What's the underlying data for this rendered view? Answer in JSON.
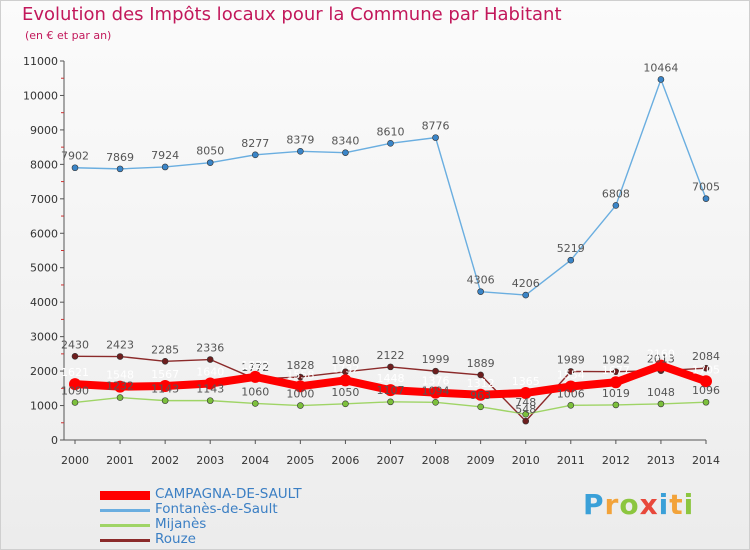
{
  "title": "Evolution des Impôts locaux pour la Commune par Habitant",
  "subtitle": "(en € et par an)",
  "logo": {
    "text": "Proxiti",
    "letters": [
      {
        "ch": "P",
        "color": "#3aa0d8"
      },
      {
        "ch": "r",
        "color": "#f2a33a"
      },
      {
        "ch": "o",
        "color": "#8cc63f"
      },
      {
        "ch": "x",
        "color": "#e8483b"
      },
      {
        "ch": "i",
        "color": "#3aa0d8"
      },
      {
        "ch": "t",
        "color": "#f2a33a"
      },
      {
        "ch": "i",
        "color": "#8cc63f"
      }
    ]
  },
  "chart_data": {
    "type": "line",
    "categories": [
      "2000",
      "2001",
      "2002",
      "2003",
      "2004",
      "2005",
      "2006",
      "2007",
      "2008",
      "2009",
      "2010",
      "2011",
      "2012",
      "2013",
      "2014"
    ],
    "ylim": [
      0,
      11000
    ],
    "yticks": [
      0,
      1000,
      2000,
      3000,
      4000,
      5000,
      6000,
      7000,
      8000,
      9000,
      10000,
      11000
    ],
    "grid": false,
    "legend_position": "bottom-left",
    "series": [
      {
        "name": "CAMPAGNA-DE-SAULT",
        "color": "#ff0000",
        "marker": "#ff0000",
        "label_color": "#ffffff",
        "thick": true,
        "values": [
          1621,
          1548,
          1567,
          1640,
          1832,
          1558,
          1732,
          1448,
          1376,
          1312,
          1365,
          1554,
          1677,
          2160,
          1705
        ]
      },
      {
        "name": "Fontanès-de-Sault",
        "color": "#6aaee0",
        "marker": "#3a85c8",
        "label_color": "#555555",
        "thick": false,
        "values": [
          7902,
          7869,
          7924,
          8050,
          8277,
          8379,
          8340,
          8610,
          8776,
          4306,
          4206,
          5219,
          6808,
          10464,
          7005
        ]
      },
      {
        "name": "Mijanès",
        "color": "#9fd466",
        "marker": "#7cc03c",
        "label_color": "#555555",
        "thick": false,
        "values": [
          1090,
          1232,
          1143,
          1143,
          1060,
          1000,
          1050,
          1107,
          1094,
          963,
          748,
          1006,
          1019,
          1048,
          1096
        ]
      },
      {
        "name": "Rouze",
        "color": "#8b2a2a",
        "marker": "#6e1e1e",
        "label_color": "#555555",
        "thick": false,
        "values": [
          2430,
          2423,
          2285,
          2336,
          1772,
          1828,
          1980,
          2122,
          1999,
          1889,
          548,
          1989,
          1982,
          2013,
          2084
        ]
      }
    ]
  }
}
